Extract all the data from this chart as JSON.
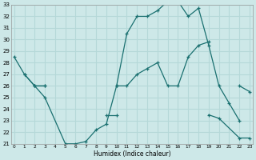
{
  "xlabel": "Humidex (Indice chaleur)",
  "bg_color": "#cde8e8",
  "grid_color": "#b5d8d8",
  "line_color": "#1a7070",
  "curve1_x": [
    0,
    1,
    2,
    3,
    5,
    6,
    7,
    8,
    9,
    10,
    11,
    12,
    13,
    14,
    15,
    16,
    17,
    18,
    19,
    20,
    21,
    22
  ],
  "curve1_y": [
    28.5,
    27.0,
    26.0,
    25.0,
    21.0,
    21.0,
    21.2,
    22.2,
    22.7,
    26.0,
    30.5,
    32.0,
    32.0,
    32.5,
    33.3,
    33.3,
    32.0,
    32.7,
    29.5,
    26.0,
    24.5,
    23.0
  ],
  "curve2_x": [
    2,
    3,
    10,
    11,
    12,
    13,
    14,
    15,
    16,
    17,
    18,
    19,
    22,
    23
  ],
  "curve2_y": [
    26.0,
    26.0,
    26.0,
    26.0,
    27.0,
    27.5,
    28.0,
    26.0,
    26.0,
    28.5,
    29.5,
    29.8,
    26.0,
    25.5
  ],
  "curve3_x": [
    1,
    2,
    3,
    9,
    10,
    19,
    20,
    22,
    23
  ],
  "curve3_y": [
    27.0,
    26.0,
    26.0,
    23.5,
    23.5,
    23.5,
    23.2,
    21.5,
    21.5
  ],
  "ylim": [
    21,
    33
  ],
  "xlim": [
    -0.3,
    23.3
  ],
  "yticks": [
    21,
    22,
    23,
    24,
    25,
    26,
    27,
    28,
    29,
    30,
    31,
    32,
    33
  ],
  "xticks": [
    0,
    1,
    2,
    3,
    4,
    5,
    6,
    7,
    8,
    9,
    10,
    11,
    12,
    13,
    14,
    15,
    16,
    17,
    18,
    19,
    20,
    21,
    22,
    23
  ]
}
